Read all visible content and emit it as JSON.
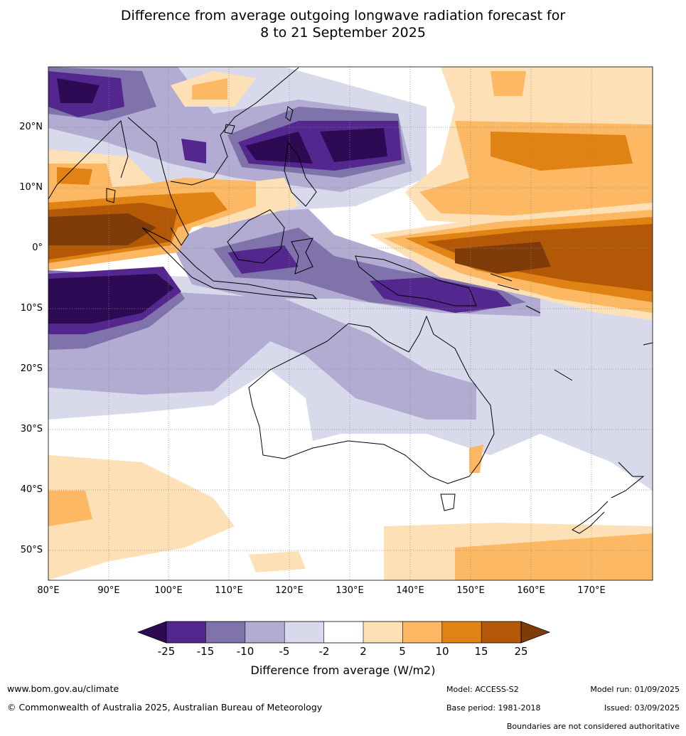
{
  "title_line1": "Difference from average outgoing longwave radiation forecast for",
  "title_line2": "8 to 21 September 2025",
  "lat_labels": [
    "20°N",
    "10°N",
    "0°",
    "10°S",
    "20°S",
    "30°S",
    "40°S",
    "50°S"
  ],
  "lon_labels": [
    "80°E",
    "90°E",
    "100°E",
    "110°E",
    "120°E",
    "130°E",
    "140°E",
    "150°E",
    "160°E",
    "170°E"
  ],
  "colorbar": {
    "ticks": [
      "-25",
      "-15",
      "-10",
      "-5",
      "-2",
      "2",
      "5",
      "10",
      "15",
      "25"
    ],
    "title": "Difference from average (W/m2)",
    "colors": [
      "#2d0b54",
      "#54278f",
      "#8073ac",
      "#b2abd2",
      "#d8daeb",
      "#ffffff",
      "#fee0b6",
      "#fdb863",
      "#e08214",
      "#b35806",
      "#7f3b08"
    ]
  },
  "footer": {
    "website": "www.bom.gov.au/climate",
    "copyright": "© Commonwealth of Australia 2025, Australian Bureau of Meteorology",
    "model": "Model: ACCESS-S2",
    "base_period": "Base period: 1981-2018",
    "model_run": "Model run: 01/09/2025",
    "issued": "Issued: 03/09/2025",
    "disclaimer": "Boundaries are not considered authoritative"
  }
}
